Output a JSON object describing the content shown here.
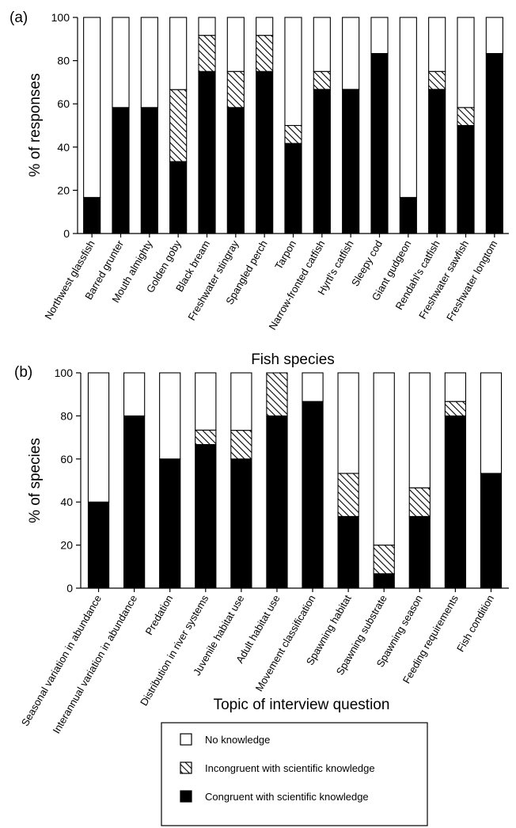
{
  "chart_data": [
    {
      "type": "bar",
      "stacked": true,
      "panel_label": "(a)",
      "xlabel": "Fish species",
      "ylabel": "% of responses",
      "ylim": [
        0,
        100
      ],
      "yticks": [
        "0",
        "20",
        "40",
        "60",
        "80",
        "100"
      ],
      "categories": [
        "Northwest glassfish",
        "Barred grunter",
        "Mouth almighty",
        "Golden goby",
        "Black bream",
        "Freshwater stingray",
        "Spangled perch",
        "Tarpon",
        "Narrow-fronted catfish",
        "Hyrtl's catfish",
        "Sleepy cod",
        "Giant gudgeon",
        "Rendahl's catfish",
        "Freshwater sawfish",
        "Freshwater longtom"
      ],
      "series": [
        {
          "name": "Congruent with scientific knowledge",
          "values": [
            16.7,
            58.3,
            58.3,
            33.3,
            75,
            58.3,
            75,
            41.7,
            66.7,
            66.7,
            83.3,
            16.7,
            66.7,
            50,
            83.3
          ]
        },
        {
          "name": "Incongruent with scientific knowledge",
          "values": [
            0,
            0,
            0,
            33.3,
            16.7,
            16.7,
            16.7,
            8.3,
            8.3,
            0,
            0,
            0,
            8.3,
            8.3,
            0
          ]
        },
        {
          "name": "No knowledge",
          "values": [
            83.3,
            41.7,
            41.7,
            33.4,
            8.3,
            25,
            8.3,
            50,
            25,
            33.3,
            16.7,
            83.3,
            25,
            41.7,
            16.7
          ]
        }
      ]
    },
    {
      "type": "bar",
      "stacked": true,
      "panel_label": "(b)",
      "xlabel": "Topic of interview question",
      "ylabel": "% of species",
      "ylim": [
        0,
        100
      ],
      "yticks": [
        "0",
        "20",
        "40",
        "60",
        "80",
        "100"
      ],
      "categories": [
        "Seasonal variation in abundance",
        "Interannual variation in abundance",
        "Predation",
        "Distribution in river systems",
        "Juvenile habitat use",
        "Adult habitat use",
        "Movement classification",
        "Spawning habitat",
        "Spawning substrate",
        "Spawning season",
        "Feeding requirements",
        "Fish condition"
      ],
      "series": [
        {
          "name": "Congruent with scientific knowledge",
          "values": [
            40,
            80,
            60,
            66.7,
            60,
            80,
            86.7,
            33.3,
            6.7,
            33.3,
            80,
            53.3
          ]
        },
        {
          "name": "Incongruent with scientific knowledge",
          "values": [
            0,
            0,
            0,
            6.7,
            13.3,
            20,
            0,
            20,
            13.3,
            13.3,
            6.7,
            0
          ]
        },
        {
          "name": "No knowledge",
          "values": [
            60,
            20,
            40,
            26.6,
            26.7,
            0,
            13.3,
            46.7,
            80,
            53.4,
            13.3,
            46.7
          ]
        }
      ]
    }
  ],
  "legend": {
    "placement": "bottom-center",
    "items": [
      {
        "label": "No knowledge",
        "fill": "white"
      },
      {
        "label": "Incongruent with scientific knowledge",
        "fill": "hatched"
      },
      {
        "label": "Congruent with scientific knowledge",
        "fill": "black"
      }
    ]
  },
  "colors": {
    "congruent": "#000000",
    "incongruent_hatch": "#000000",
    "no_knowledge": "#ffffff",
    "outline": "#000000"
  }
}
